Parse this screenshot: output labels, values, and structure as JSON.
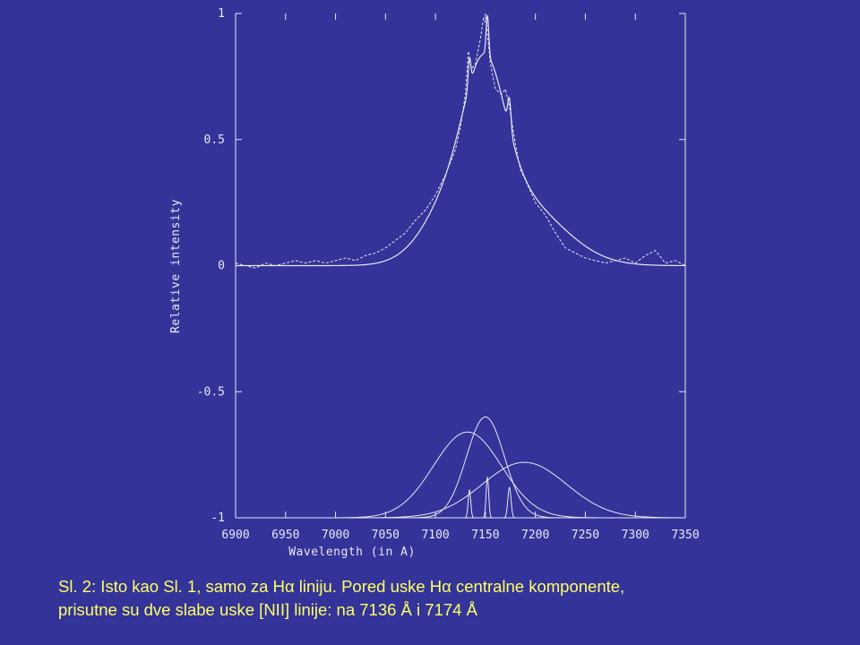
{
  "caption": {
    "line1": "Sl. 2: Isto kao Sl. 1, samo za Hα liniju. Pored uske Hα centralne komponente,",
    "line2": "prisutne su dve slabe uske [NII] linije: na 7136 Å i 7174 Å"
  },
  "colors": {
    "background": "#333399",
    "plot": "#e8e8f4",
    "caption": "#ffff66"
  },
  "chart_data": {
    "type": "line",
    "title": "",
    "xlabel": "Wavelength (in A)",
    "ylabel": "Relative intensity",
    "xlim": [
      6900,
      7350
    ],
    "ylim": [
      -1,
      1
    ],
    "grid": false,
    "x_ticks": [
      6900,
      6950,
      7000,
      7050,
      7100,
      7150,
      7200,
      7250,
      7300,
      7350
    ],
    "y_ticks": [
      -1,
      -0.5,
      0,
      0.5,
      1
    ],
    "y_tick_labels": [
      "-1",
      "-0.5",
      "0",
      "0.5",
      "1"
    ],
    "observed_spectrum": {
      "style": "dashed",
      "points": [
        [
          6900,
          0.01
        ],
        [
          6910,
          0.0
        ],
        [
          6920,
          -0.01
        ],
        [
          6930,
          0.01
        ],
        [
          6940,
          0.0
        ],
        [
          6950,
          0.01
        ],
        [
          6960,
          0.02
        ],
        [
          6970,
          0.01
        ],
        [
          6980,
          0.02
        ],
        [
          6990,
          0.01
        ],
        [
          7000,
          0.02
        ],
        [
          7010,
          0.03
        ],
        [
          7020,
          0.02
        ],
        [
          7030,
          0.04
        ],
        [
          7040,
          0.05
        ],
        [
          7050,
          0.07
        ],
        [
          7060,
          0.1
        ],
        [
          7070,
          0.13
        ],
        [
          7080,
          0.18
        ],
        [
          7090,
          0.22
        ],
        [
          7100,
          0.28
        ],
        [
          7110,
          0.36
        ],
        [
          7120,
          0.46
        ],
        [
          7125,
          0.55
        ],
        [
          7130,
          0.68
        ],
        [
          7133,
          0.85
        ],
        [
          7136,
          0.78
        ],
        [
          7140,
          0.8
        ],
        [
          7145,
          0.9
        ],
        [
          7148,
          0.98
        ],
        [
          7151,
          0.96
        ],
        [
          7155,
          0.8
        ],
        [
          7160,
          0.7
        ],
        [
          7166,
          0.68
        ],
        [
          7170,
          0.7
        ],
        [
          7174,
          0.63
        ],
        [
          7180,
          0.48
        ],
        [
          7185,
          0.38
        ],
        [
          7190,
          0.34
        ],
        [
          7200,
          0.25
        ],
        [
          7210,
          0.2
        ],
        [
          7220,
          0.13
        ],
        [
          7230,
          0.07
        ],
        [
          7240,
          0.05
        ],
        [
          7250,
          0.03
        ],
        [
          7260,
          0.02
        ],
        [
          7270,
          0.01
        ],
        [
          7280,
          0.02
        ],
        [
          7290,
          0.03
        ],
        [
          7300,
          0.01
        ],
        [
          7310,
          0.04
        ],
        [
          7320,
          0.06
        ],
        [
          7330,
          0.01
        ],
        [
          7340,
          0.02
        ],
        [
          7350,
          0.0
        ]
      ]
    },
    "components": [
      {
        "shape": "gaussian",
        "center": 7132,
        "amplitude": 0.34,
        "sigma": 34,
        "baseline": -1
      },
      {
        "shape": "gaussian",
        "center": 7150,
        "amplitude": 0.4,
        "sigma": 19,
        "baseline": -1
      },
      {
        "shape": "gaussian",
        "center": 7189,
        "amplitude": 0.22,
        "sigma": 42,
        "baseline": -1
      },
      {
        "shape": "gaussian",
        "center": 7134,
        "amplitude": 0.11,
        "sigma": 1.3,
        "baseline": -1
      },
      {
        "shape": "gaussian",
        "center": 7152,
        "amplitude": 0.16,
        "sigma": 1.3,
        "baseline": -1
      },
      {
        "shape": "gaussian",
        "center": 7174,
        "amplitude": 0.12,
        "sigma": 1.6,
        "baseline": -1
      }
    ],
    "model_fit": {
      "shape": "sum of component gaussians above zero",
      "baseline": 0
    }
  }
}
